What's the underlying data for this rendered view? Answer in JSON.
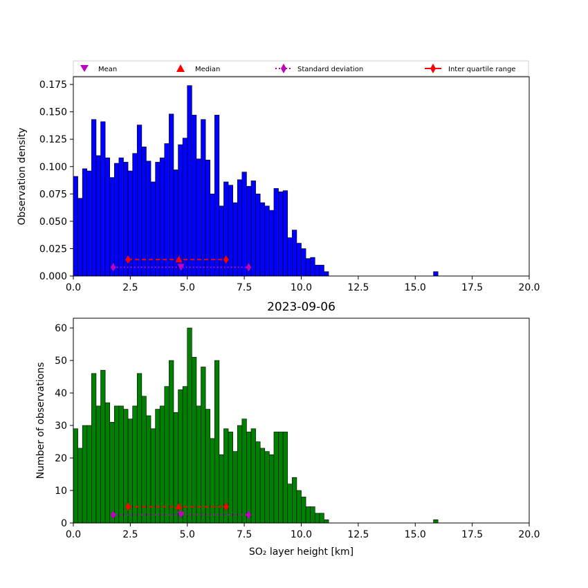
{
  "chart_data": [
    {
      "type": "bar",
      "panel": "top",
      "title": "",
      "xlabel": "",
      "ylabel": "Observation density",
      "xlim": [
        0,
        20
      ],
      "ylim": [
        0,
        0.182
      ],
      "xticks": [
        "0.0",
        "2.5",
        "5.0",
        "7.5",
        "10.0",
        "12.5",
        "15.0",
        "17.5",
        "20.0"
      ],
      "yticks": [
        "0.000",
        "0.025",
        "0.050",
        "0.075",
        "0.100",
        "0.125",
        "0.150",
        "0.175"
      ],
      "bar_color": "#0000ff",
      "edge_color": "#000000",
      "bin_start": 0,
      "bin_width": 0.2,
      "values": [
        0.091,
        0.071,
        0.098,
        0.096,
        0.143,
        0.11,
        0.141,
        0.108,
        0.09,
        0.103,
        0.108,
        0.104,
        0.096,
        0.112,
        0.138,
        0.118,
        0.105,
        0.086,
        0.104,
        0.108,
        0.121,
        0.148,
        0.097,
        0.12,
        0.126,
        0.174,
        0.147,
        0.107,
        0.143,
        0.106,
        0.075,
        0.147,
        0.064,
        0.086,
        0.083,
        0.067,
        0.088,
        0.095,
        0.082,
        0.087,
        0.075,
        0.067,
        0.064,
        0.06,
        0.08,
        0.077,
        0.078,
        0.035,
        0.042,
        0.03,
        0.025,
        0.016,
        0.017,
        0.01,
        0.01,
        0.004
      ],
      "extra_bars": [
        {
          "x": 15.9,
          "value": 0.004
        }
      ],
      "markers": {
        "mean": {
          "x": 4.72,
          "y": 0.008
        },
        "median": {
          "x": 4.63,
          "y": 0.015
        },
        "std": {
          "low": 1.75,
          "high": 7.69,
          "y": 0.008
        },
        "iqr": {
          "low": 2.4,
          "high": 6.7,
          "y": 0.015
        }
      }
    },
    {
      "type": "bar",
      "panel": "bottom",
      "title": "2023-09-06",
      "xlabel": "SO₂ layer height [km]",
      "ylabel": "Number of observations",
      "xlim": [
        0,
        20
      ],
      "ylim": [
        0,
        63
      ],
      "xticks": [
        "0.0",
        "2.5",
        "5.0",
        "7.5",
        "10.0",
        "12.5",
        "15.0",
        "17.5",
        "20.0"
      ],
      "yticks": [
        "0",
        "10",
        "20",
        "30",
        "40",
        "50",
        "60"
      ],
      "bar_color": "#008000",
      "edge_color": "#000000",
      "bin_start": 0,
      "bin_width": 0.2,
      "values": [
        29,
        23,
        30,
        30,
        46,
        36,
        47,
        37,
        31,
        36,
        36,
        35,
        32,
        36,
        46,
        39,
        33,
        29,
        35,
        36,
        42,
        50,
        34,
        41,
        42,
        60,
        51,
        36,
        48,
        35,
        26,
        50,
        21,
        29,
        28,
        22,
        30,
        32,
        28,
        29,
        25,
        23,
        22,
        21,
        28,
        28,
        28,
        12,
        14,
        10,
        8,
        5,
        5,
        3,
        3,
        1
      ],
      "extra_bars": [
        {
          "x": 15.9,
          "value": 1
        }
      ],
      "markers": {
        "mean": {
          "x": 4.72,
          "y": 2.5
        },
        "median": {
          "x": 4.63,
          "y": 5
        },
        "std": {
          "low": 1.75,
          "high": 7.69,
          "y": 2.5
        },
        "iqr": {
          "low": 2.4,
          "high": 6.7,
          "y": 5
        }
      }
    }
  ],
  "legend": {
    "placement": "top",
    "entries": [
      {
        "label": "Mean",
        "marker": "triangle-down",
        "color": "#bf00bf"
      },
      {
        "label": "Median",
        "marker": "triangle-up",
        "color": "#ff0000"
      },
      {
        "label": "Standard deviation",
        "marker": "thin-diamond-dotted",
        "color": "#bf00bf"
      },
      {
        "label": "Inter quartile range",
        "marker": "thin-diamond-dashed",
        "color": "#ff0000"
      }
    ]
  },
  "colors": {
    "mean": "#bf00bf",
    "median": "#ff0000",
    "std": "#bf00bf",
    "iqr": "#ff0000"
  }
}
